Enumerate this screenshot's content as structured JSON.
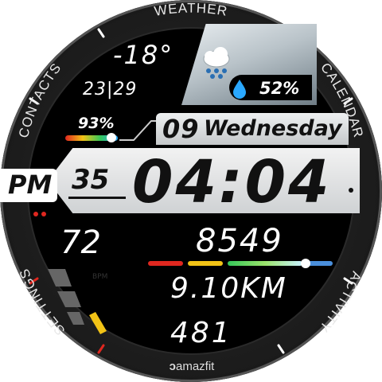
{
  "bezel": {
    "top": "WEATHER",
    "left": "CONTACTS",
    "right": "CALENDAR",
    "bottom_left": "SETTINGS",
    "bottom_right": "ACTIVITY",
    "brand": "amazfit"
  },
  "weather": {
    "temperature": "-18°",
    "low_high": "23|29",
    "humidity": "52%",
    "icon": "snow-cloud-icon"
  },
  "battery": {
    "percent": "93%",
    "level": 0.93
  },
  "date": {
    "day": "09",
    "weekday": "Wednesday"
  },
  "time": {
    "ampm": "PM",
    "seconds": "35",
    "hh_mm": "04:04"
  },
  "stats": {
    "heart_rate": "72",
    "steps": "8549",
    "distance": "9.10",
    "distance_unit": "KM",
    "calories": "481",
    "steps_progress": 0.85
  },
  "colors": {
    "accent_yellow": "#f2c316",
    "accent_red": "#e0271f",
    "water_blue": "#2aa8ff"
  }
}
